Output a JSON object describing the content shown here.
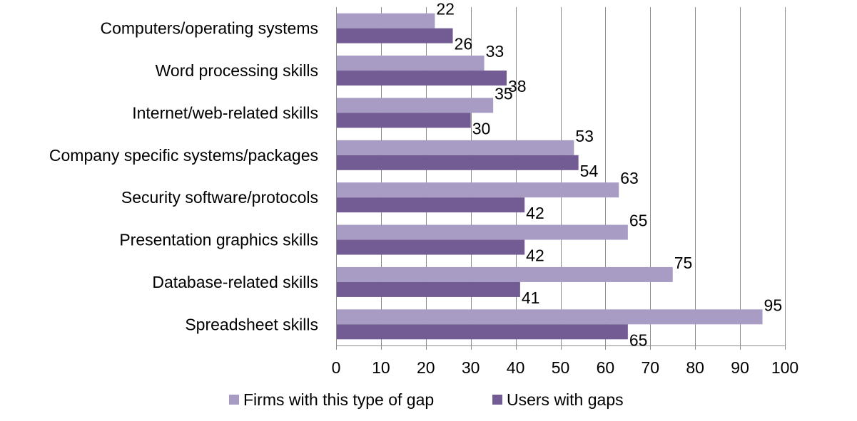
{
  "chart_data": {
    "type": "bar",
    "orientation": "horizontal",
    "categories": [
      "Computers/operating systems",
      "Word processing skills",
      "Internet/web-related skills",
      "Company specific systems/packages",
      "Security software/protocols",
      "Presentation graphics skills",
      "Database-related skills",
      "Spreadsheet skills"
    ],
    "series": [
      {
        "name": "Firms with this type of gap",
        "color": "#a89bc4",
        "values": [
          22,
          33,
          35,
          53,
          63,
          65,
          75,
          95
        ]
      },
      {
        "name": "Users with gaps",
        "color": "#735c94",
        "values": [
          26,
          38,
          30,
          54,
          42,
          42,
          41,
          65
        ]
      }
    ],
    "xlim": [
      0,
      100
    ],
    "xticks": [
      0,
      10,
      20,
      30,
      40,
      50,
      60,
      70,
      80,
      90,
      100
    ],
    "grid": "vertical",
    "legend": "bottom",
    "title": "",
    "xlabel": "",
    "ylabel": ""
  }
}
